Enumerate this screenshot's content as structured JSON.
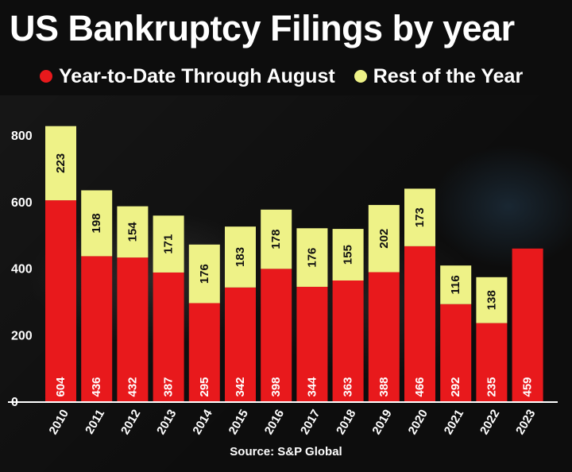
{
  "title": "US Bankruptcy Filings by year",
  "source": "Source: S&P Global",
  "colors": {
    "ytd": "#e8191c",
    "rest": "#eef287",
    "background": "#0d0d0d"
  },
  "chart_data": {
    "type": "bar",
    "stacked": true,
    "title": "US Bankruptcy Filings by year",
    "xlabel": "",
    "ylabel": "",
    "ylim": [
      0,
      800
    ],
    "yticks": [
      0,
      200,
      400,
      600,
      800
    ],
    "legend_position": "top-left",
    "grid": false,
    "categories": [
      "2010",
      "2011",
      "2012",
      "2013",
      "2014",
      "2015",
      "2016",
      "2017",
      "2018",
      "2019",
      "2020",
      "2021",
      "2022",
      "2023"
    ],
    "series": [
      {
        "name": "Year-to-Date Through August",
        "color": "#e8191c",
        "values": [
          604,
          436,
          432,
          387,
          295,
          342,
          398,
          344,
          363,
          388,
          466,
          292,
          235,
          459
        ]
      },
      {
        "name": "Rest of the Year",
        "color": "#eef287",
        "values": [
          223,
          198,
          154,
          171,
          176,
          183,
          178,
          176,
          155,
          202,
          173,
          116,
          138,
          null
        ]
      }
    ]
  }
}
